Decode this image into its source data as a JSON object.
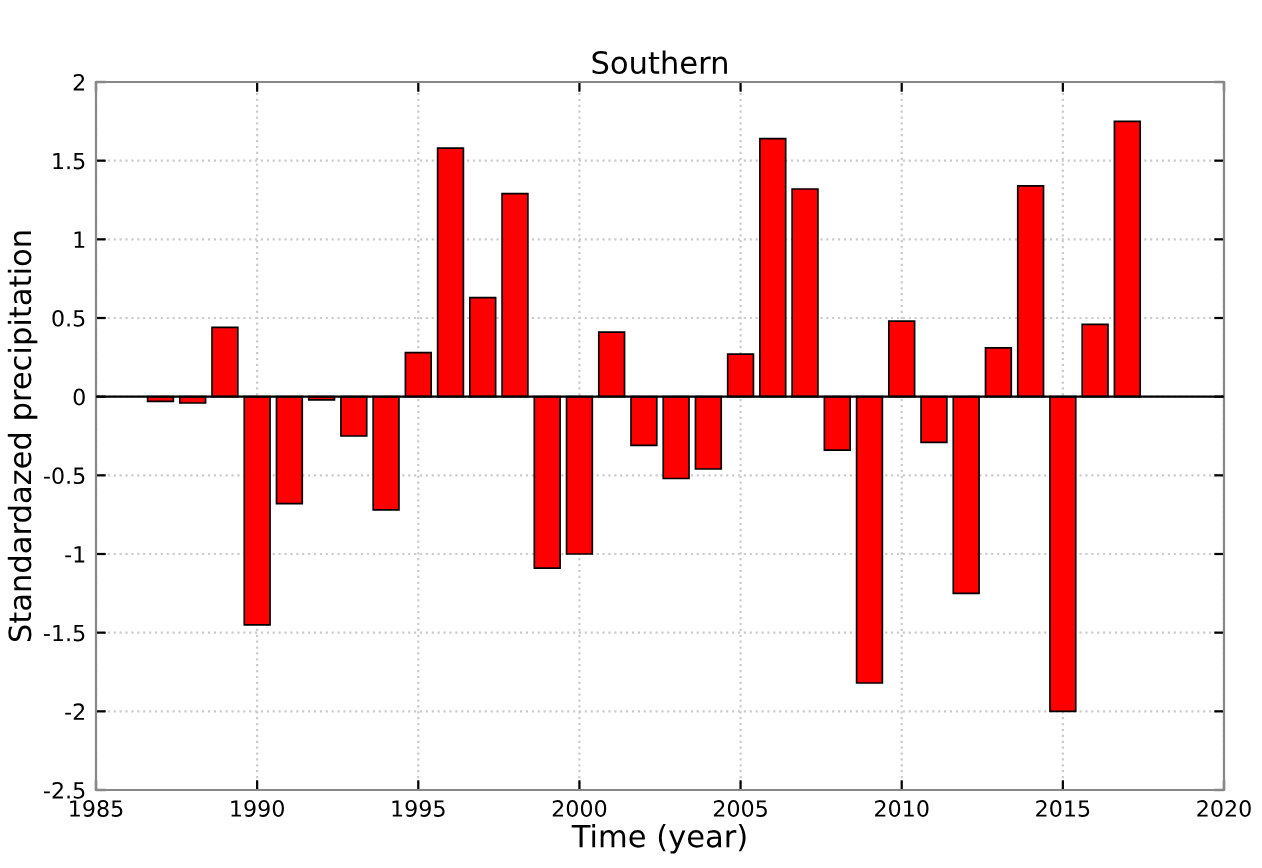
{
  "chart_data": {
    "type": "bar",
    "title": "Southern",
    "xlabel": "Time (year)",
    "ylabel": "Standardazed precipitation",
    "x": [
      1987,
      1988,
      1989,
      1990,
      1991,
      1992,
      1993,
      1994,
      1995,
      1996,
      1997,
      1998,
      1999,
      2000,
      2001,
      2002,
      2003,
      2004,
      2005,
      2006,
      2007,
      2008,
      2009,
      2010,
      2011,
      2012,
      2013,
      2014,
      2015,
      2016,
      2017
    ],
    "values": [
      -0.03,
      -0.04,
      0.44,
      -1.45,
      -0.68,
      -0.02,
      -0.25,
      -0.72,
      0.28,
      1.58,
      0.63,
      1.29,
      -1.09,
      -1.0,
      0.41,
      -0.31,
      -0.52,
      -0.46,
      0.27,
      1.64,
      1.32,
      -0.34,
      -1.82,
      0.48,
      -0.29,
      -1.25,
      0.31,
      1.34,
      -2.0,
      0.46,
      1.75
    ],
    "color": "#ff0000",
    "xlim": [
      1985,
      2020
    ],
    "xticks": [
      1985,
      1990,
      1995,
      2000,
      2005,
      2010,
      2015,
      2020
    ],
    "ylim": [
      -2.5,
      2
    ],
    "yticks": [
      -2.5,
      -2,
      -1.5,
      -1,
      -0.5,
      0,
      0.5,
      1,
      1.5,
      2
    ],
    "grid": true
  }
}
